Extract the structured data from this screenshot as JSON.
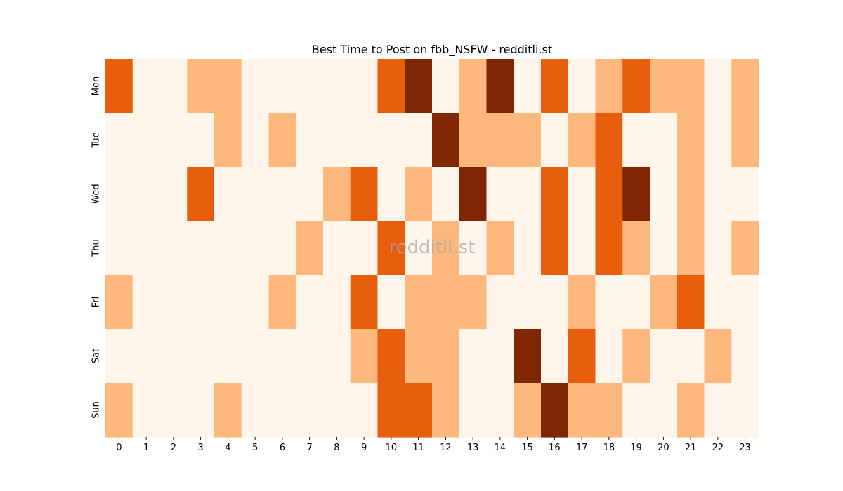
{
  "chart_data": {
    "type": "heatmap",
    "title": "Best Time to Post on fbb_NSFW - redditli.st",
    "watermark": "redditli.st",
    "x": [
      "0",
      "1",
      "2",
      "3",
      "4",
      "5",
      "6",
      "7",
      "8",
      "9",
      "10",
      "11",
      "12",
      "13",
      "14",
      "15",
      "16",
      "17",
      "18",
      "19",
      "20",
      "21",
      "22",
      "23"
    ],
    "y": [
      "Mon",
      "Tue",
      "Wed",
      "Thu",
      "Fri",
      "Sat",
      "Sun"
    ],
    "xlabel": "",
    "ylabel": "",
    "legend": "none",
    "colormap": [
      "#fff5eb",
      "#fdb97d",
      "#e95e0d",
      "#7f2704"
    ],
    "values": [
      [
        2,
        0,
        0,
        1,
        1,
        0,
        0,
        0,
        0,
        0,
        2,
        3,
        0,
        1,
        3,
        0,
        2,
        0,
        1,
        2,
        1,
        1,
        0,
        1
      ],
      [
        0,
        0,
        0,
        0,
        1,
        0,
        1,
        0,
        0,
        0,
        0,
        0,
        3,
        1,
        1,
        1,
        0,
        1,
        2,
        0,
        0,
        1,
        0,
        1
      ],
      [
        0,
        0,
        0,
        2,
        0,
        0,
        0,
        0,
        1,
        2,
        0,
        1,
        0,
        3,
        0,
        0,
        2,
        0,
        2,
        3,
        0,
        1,
        0,
        0
      ],
      [
        0,
        0,
        0,
        0,
        0,
        0,
        0,
        1,
        0,
        0,
        2,
        0,
        1,
        0,
        1,
        0,
        2,
        0,
        2,
        1,
        0,
        1,
        0,
        1
      ],
      [
        1,
        0,
        0,
        0,
        0,
        0,
        1,
        0,
        0,
        2,
        0,
        1,
        1,
        1,
        0,
        0,
        0,
        1,
        0,
        0,
        1,
        2,
        0,
        0
      ],
      [
        0,
        0,
        0,
        0,
        0,
        0,
        0,
        0,
        0,
        1,
        2,
        1,
        1,
        0,
        0,
        3,
        0,
        2,
        0,
        1,
        0,
        0,
        1,
        0
      ],
      [
        1,
        0,
        0,
        0,
        1,
        0,
        0,
        0,
        0,
        0,
        2,
        2,
        1,
        0,
        0,
        1,
        3,
        1,
        1,
        0,
        0,
        1,
        0,
        0
      ]
    ]
  }
}
